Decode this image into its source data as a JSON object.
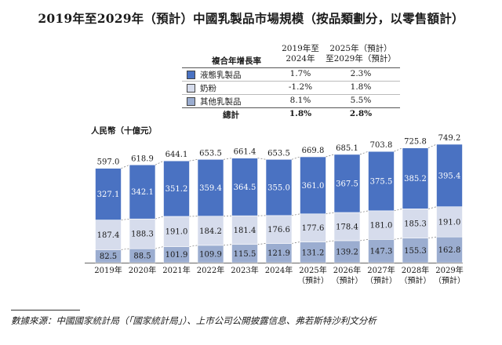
{
  "title": "2019年至2029年（預計）中國乳製品市場規模（按品類劃分，以零售額計）",
  "cagr_table": {
    "row_header": "複合年增長率",
    "col1_header": [
      "2019年至",
      "2024年"
    ],
    "col2_header": [
      "2025年（預計）",
      "至2029年（預計）"
    ],
    "rows": [
      {
        "label": "液態乳製品",
        "c1": "1.7%",
        "c2": "2.3%",
        "color": "#4a72c2"
      },
      {
        "label": "奶粉",
        "c1": "-1.2%",
        "c2": "1.8%",
        "color": "#d6dcec"
      },
      {
        "label": "其他乳製品",
        "c1": "8.1%",
        "c2": "5.5%",
        "color": "#9badd0"
      }
    ],
    "total": {
      "label": "總計",
      "c1": "1.8%",
      "c2": "2.8%"
    }
  },
  "unit_label": "人民幣（十億元）",
  "source": "數據來源：中國國家統計局（「國家統計局」）、上市公司公開披露信息、弗若斯特沙利文分析",
  "chart_data": {
    "type": "bar",
    "stacked": true,
    "categories": [
      [
        "2019年"
      ],
      [
        "2020年"
      ],
      [
        "2021年"
      ],
      [
        "2022年"
      ],
      [
        "2023年"
      ],
      [
        "2024年"
      ],
      [
        "2025年",
        "（預計）"
      ],
      [
        "2026年",
        "（預計）"
      ],
      [
        "2027年",
        "（預計）"
      ],
      [
        "2028年",
        "（預計）"
      ],
      [
        "2029年",
        "（預計）"
      ]
    ],
    "series": [
      {
        "name": "其他乳製品",
        "color": "#9badd0",
        "values": [
          82.5,
          88.5,
          101.9,
          109.9,
          115.5,
          121.9,
          131.2,
          139.2,
          147.3,
          155.3,
          162.8
        ]
      },
      {
        "name": "奶粉",
        "color": "#d6dcec",
        "values": [
          187.4,
          188.3,
          191.0,
          184.2,
          181.4,
          176.6,
          177.6,
          178.4,
          181.0,
          185.3,
          191.0
        ]
      },
      {
        "name": "液態乳製品",
        "color": "#4a72c2",
        "values": [
          327.1,
          342.1,
          351.2,
          359.4,
          364.5,
          355.0,
          361.0,
          367.5,
          375.5,
          385.2,
          395.4
        ]
      }
    ],
    "totals": [
      597.0,
      618.9,
      644.1,
      653.5,
      661.4,
      653.5,
      669.8,
      685.1,
      703.8,
      725.8,
      749.2
    ],
    "ylim": [
      0,
      749.2
    ],
    "grid": false,
    "legend": "top"
  }
}
